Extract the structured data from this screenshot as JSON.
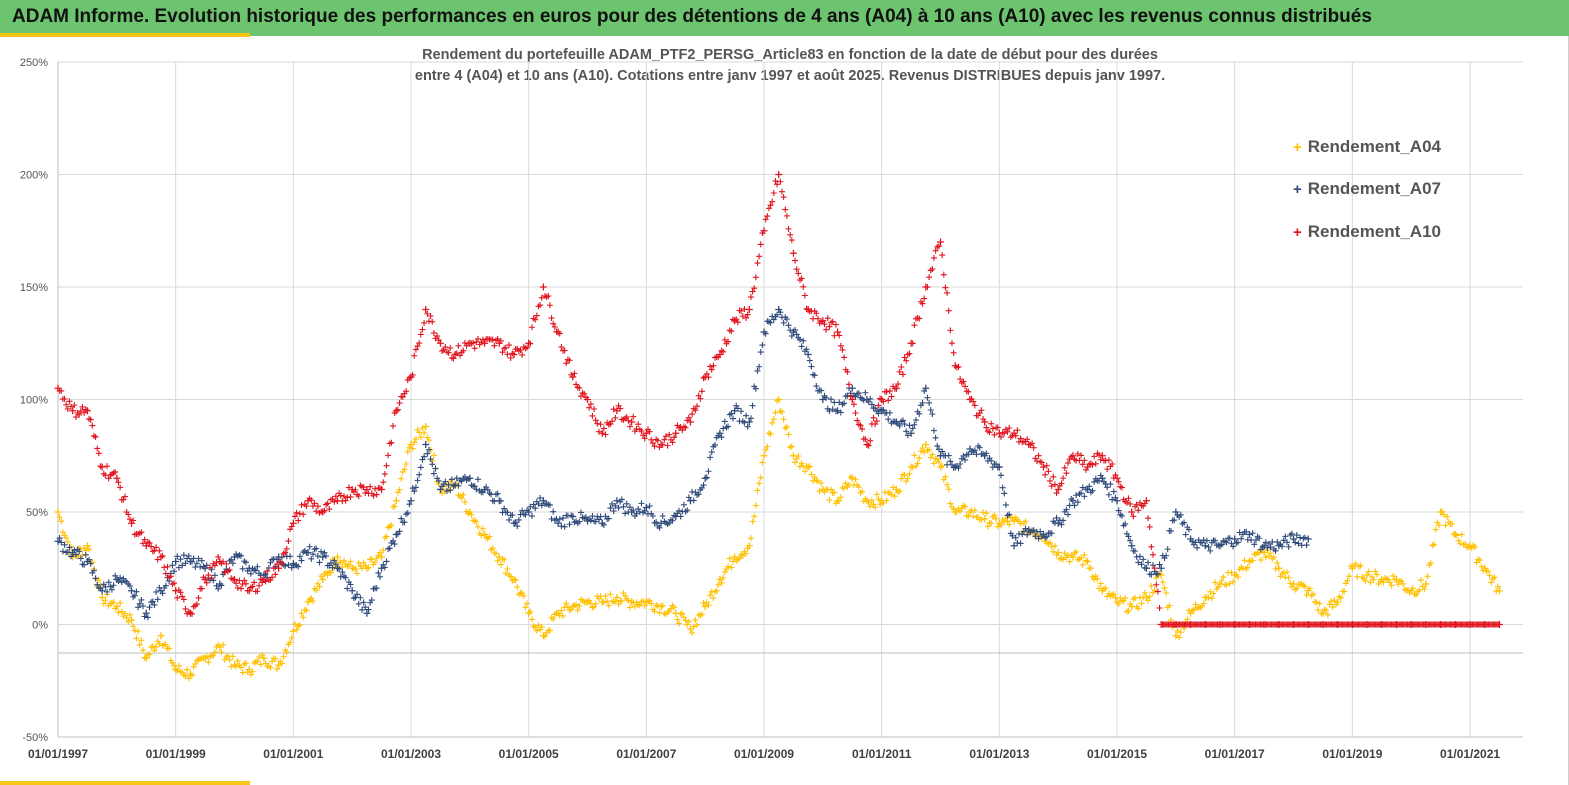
{
  "banner": {
    "title": "ADAM Informe. Evolution historique des performances en euros pour des détentions de 4 ans (A04) à 10 ans (A10) avec les revenus connus distribués"
  },
  "colors": {
    "banner_bg": "#6cc46e",
    "accent": "#f5c518",
    "A04": "#ffc000",
    "A07": "#2f4a7a",
    "A10": "#e0141e"
  },
  "chart_data": {
    "type": "scatter",
    "title_line1": "Rendement du portefeuille ADAM_PTF2_PERSG_Article83  en fonction de la date de début pour des durées",
    "title_line2": "entre 4 (A04) et 10 ans (A10). Cotations  entre janv 1997 et août 2025. Revenus DISTRIBUES depuis janv 1997.",
    "xlabel": "",
    "ylabel": "",
    "x_range": [
      "1997-01-01",
      "2021-09-01"
    ],
    "ylim": [
      -50,
      250
    ],
    "y_ticks": [
      250,
      200,
      150,
      100,
      50,
      0,
      -50
    ],
    "y_tick_labels": [
      "250%",
      "200%",
      "150%",
      "100%",
      "50%",
      "0%",
      "-50%"
    ],
    "x_ticks": [
      1997,
      1999,
      2001,
      2003,
      2005,
      2007,
      2009,
      2011,
      2013,
      2015,
      2017,
      2019,
      2021
    ],
    "x_tick_labels": [
      "01/01/1997",
      "01/01/1999",
      "01/01/2001",
      "01/01/2003",
      "01/01/2005",
      "01/01/2007",
      "01/01/2009",
      "01/01/2011",
      "01/01/2013",
      "01/01/2015",
      "01/01/2017",
      "01/01/2019",
      "01/01/2021"
    ],
    "marker": "+",
    "grid": true,
    "legend_position": "top-right",
    "series": [
      {
        "name": "Rendement_A04",
        "color": "#ffc000",
        "x": [
          1997.0,
          1997.25,
          1997.5,
          1997.75,
          1998.0,
          1998.25,
          1998.5,
          1998.75,
          1999.0,
          1999.25,
          1999.5,
          1999.75,
          2000.0,
          2000.25,
          2000.5,
          2000.75,
          2001.0,
          2001.25,
          2001.5,
          2001.75,
          2002.0,
          2002.25,
          2002.5,
          2002.75,
          2003.0,
          2003.25,
          2003.5,
          2003.75,
          2004.0,
          2004.25,
          2004.5,
          2004.75,
          2005.0,
          2005.25,
          2005.5,
          2005.75,
          2006.0,
          2006.25,
          2006.5,
          2006.75,
          2007.0,
          2007.25,
          2007.5,
          2007.75,
          2008.0,
          2008.25,
          2008.5,
          2008.75,
          2009.0,
          2009.25,
          2009.5,
          2009.75,
          2010.0,
          2010.25,
          2010.5,
          2010.75,
          2011.0,
          2011.25,
          2011.5,
          2011.75,
          2012.0,
          2012.25,
          2012.5,
          2012.75,
          2013.0,
          2013.25,
          2013.5,
          2013.75,
          2014.0,
          2014.25,
          2014.5,
          2014.75,
          2015.0,
          2015.25,
          2015.5,
          2015.75,
          2016.0,
          2016.25,
          2016.5,
          2016.75,
          2017.0,
          2017.25,
          2017.5,
          2017.75,
          2018.0,
          2018.25,
          2018.5,
          2018.75,
          2019.0,
          2019.25,
          2019.5,
          2019.75,
          2020.0,
          2020.25,
          2020.5,
          2020.75,
          2021.0,
          2021.25,
          2021.5
        ],
        "y": [
          50,
          30,
          35,
          12,
          8,
          2,
          -15,
          -5,
          -20,
          -22,
          -15,
          -10,
          -18,
          -20,
          -15,
          -18,
          -3,
          10,
          20,
          30,
          25,
          25,
          30,
          55,
          80,
          88,
          60,
          62,
          50,
          40,
          30,
          20,
          5,
          -5,
          5,
          8,
          10,
          10,
          12,
          10,
          10,
          8,
          5,
          -2,
          8,
          20,
          30,
          35,
          75,
          100,
          75,
          70,
          60,
          55,
          65,
          55,
          55,
          60,
          70,
          80,
          70,
          50,
          50,
          47,
          45,
          46,
          42,
          40,
          32,
          30,
          28,
          15,
          10,
          8,
          12,
          22,
          -5,
          5,
          12,
          18,
          22,
          28,
          32,
          25,
          18,
          15,
          5,
          10,
          25,
          22,
          20,
          20,
          15,
          18,
          50,
          40,
          35,
          25,
          15
        ]
      },
      {
        "name": "Rendement_A07",
        "color": "#2f4a7a",
        "x": [
          1997.0,
          1997.25,
          1997.5,
          1997.75,
          1998.0,
          1998.25,
          1998.5,
          1998.75,
          1999.0,
          1999.25,
          1999.5,
          1999.75,
          2000.0,
          2000.25,
          2000.5,
          2000.75,
          2001.0,
          2001.25,
          2001.5,
          2001.75,
          2002.0,
          2002.25,
          2002.5,
          2002.75,
          2003.0,
          2003.25,
          2003.5,
          2003.75,
          2004.0,
          2004.25,
          2004.5,
          2004.75,
          2005.0,
          2005.25,
          2005.5,
          2005.75,
          2006.0,
          2006.25,
          2006.5,
          2006.75,
          2007.0,
          2007.25,
          2007.5,
          2007.75,
          2008.0,
          2008.25,
          2008.5,
          2008.75,
          2009.0,
          2009.25,
          2009.5,
          2009.75,
          2010.0,
          2010.25,
          2010.5,
          2010.75,
          2011.0,
          2011.25,
          2011.5,
          2011.75,
          2012.0,
          2012.25,
          2012.5,
          2012.75,
          2013.0,
          2013.25,
          2013.5,
          2013.75,
          2014.0,
          2014.25,
          2014.5,
          2014.75,
          2015.0,
          2015.25,
          2015.5,
          2015.75,
          2016.0,
          2016.25,
          2016.5,
          2016.75,
          2017.0,
          2017.25,
          2017.5,
          2017.75,
          2018.0,
          2018.25
        ],
        "y": [
          37,
          32,
          28,
          15,
          20,
          15,
          5,
          15,
          28,
          28,
          25,
          18,
          30,
          25,
          22,
          30,
          27,
          32,
          30,
          25,
          15,
          5,
          25,
          40,
          55,
          80,
          60,
          62,
          65,
          60,
          55,
          45,
          50,
          55,
          45,
          48,
          46,
          45,
          55,
          50,
          52,
          45,
          48,
          55,
          65,
          85,
          95,
          90,
          130,
          140,
          130,
          120,
          100,
          95,
          105,
          100,
          95,
          90,
          85,
          105,
          75,
          70,
          78,
          75,
          70,
          35,
          42,
          40,
          45,
          55,
          60,
          65,
          55,
          35,
          25,
          25,
          50,
          38,
          35,
          35,
          38,
          40,
          35,
          35,
          38,
          38
        ]
      },
      {
        "name": "Rendement_A10",
        "color": "#e0141e",
        "x": [
          1997.0,
          1997.25,
          1997.5,
          1997.75,
          1998.0,
          1998.25,
          1998.5,
          1998.75,
          1999.0,
          1999.25,
          1999.5,
          1999.75,
          2000.0,
          2000.25,
          2000.5,
          2000.75,
          2001.0,
          2001.25,
          2001.5,
          2001.75,
          2002.0,
          2002.25,
          2002.5,
          2002.75,
          2003.0,
          2003.25,
          2003.5,
          2003.75,
          2004.0,
          2004.25,
          2004.5,
          2004.75,
          2005.0,
          2005.25,
          2005.5,
          2005.75,
          2006.0,
          2006.25,
          2006.5,
          2006.75,
          2007.0,
          2007.25,
          2007.5,
          2007.75,
          2008.0,
          2008.25,
          2008.5,
          2008.75,
          2009.0,
          2009.25,
          2009.5,
          2009.75,
          2010.0,
          2010.25,
          2010.5,
          2010.75,
          2011.0,
          2011.25,
          2011.5,
          2011.75,
          2012.0,
          2012.25,
          2012.5,
          2012.75,
          2013.0,
          2013.25,
          2013.5,
          2013.75,
          2014.0,
          2014.25,
          2014.5,
          2014.75,
          2015.0,
          2015.25,
          2015.5,
          2015.75,
          2016.0,
          2016.25,
          2016.5,
          2016.75,
          2017.0,
          2017.25,
          2017.5,
          2017.75,
          2018.0,
          2018.25,
          2018.5,
          2018.75,
          2019.0,
          2019.25,
          2019.5,
          2019.75,
          2020.0,
          2020.25,
          2020.5,
          2020.75,
          2021.0,
          2021.25,
          2021.5
        ],
        "y": [
          105,
          95,
          95,
          70,
          65,
          45,
          35,
          30,
          15,
          5,
          20,
          28,
          20,
          15,
          20,
          25,
          45,
          55,
          50,
          55,
          60,
          60,
          60,
          95,
          110,
          140,
          125,
          120,
          125,
          125,
          125,
          120,
          125,
          150,
          130,
          110,
          100,
          85,
          95,
          90,
          85,
          80,
          85,
          90,
          110,
          120,
          135,
          140,
          175,
          200,
          165,
          140,
          135,
          130,
          100,
          80,
          100,
          105,
          125,
          150,
          170,
          115,
          100,
          90,
          85,
          85,
          80,
          70,
          60,
          75,
          70,
          75,
          65,
          50,
          55,
          0,
          0,
          0,
          0,
          0,
          0,
          0,
          0,
          0,
          0,
          0,
          0,
          0,
          0,
          0,
          0,
          0,
          0,
          0,
          0,
          0,
          0,
          0,
          0
        ]
      }
    ]
  }
}
